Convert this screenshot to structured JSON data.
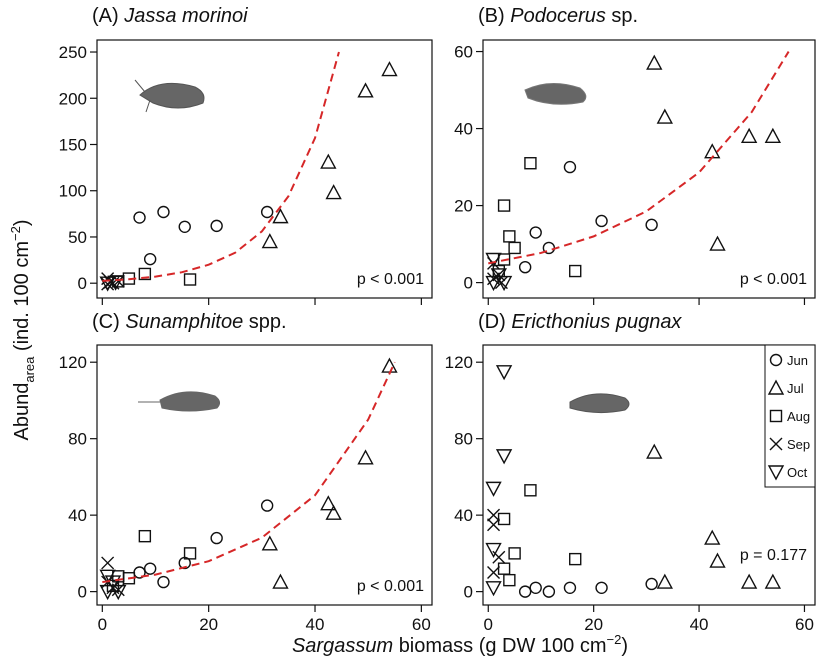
{
  "x_label": {
    "italic": "Sargassum",
    "text": "biomass (g DW 100 cm",
    "sup": "−2",
    "end": ")"
  },
  "y_label": {
    "text": "Abund",
    "sub": "area",
    "rest": "(ind. 100 cm",
    "sup": "−2",
    "end": ")"
  },
  "chart_data": [
    {
      "type": "scatter",
      "panel": "(A)",
      "title": "Jassa morinoi",
      "annotation": "p < 0.001",
      "xlim": [
        -1,
        62
      ],
      "ylim": [
        -16,
        263
      ],
      "xticks": [
        0,
        20,
        40,
        60
      ],
      "yticks": [
        0,
        50,
        100,
        150,
        200,
        250
      ],
      "xtick_labels": false,
      "series": [
        {
          "name": "Jun",
          "marker": "circle",
          "color": "#111111",
          "x": [
            7,
            11.5,
            9,
            15.5,
            21.5,
            31
          ],
          "values": [
            71,
            77,
            26,
            61,
            62,
            77
          ]
        },
        {
          "name": "Jul",
          "marker": "triangle",
          "color": "#111111",
          "x": [
            54,
            49.5,
            42.5,
            43.5,
            31.5,
            33.5
          ],
          "values": [
            231,
            208,
            131,
            98,
            45,
            72
          ]
        },
        {
          "name": "Aug",
          "marker": "square",
          "color": "#111111",
          "x": [
            8,
            16.5,
            3,
            5
          ],
          "values": [
            10,
            4,
            2,
            5
          ]
        },
        {
          "name": "Sep",
          "marker": "x",
          "color": "#111111",
          "x": [
            1,
            1.5,
            2,
            3,
            1
          ],
          "values": [
            5,
            1,
            0,
            2,
            -1
          ]
        },
        {
          "name": "Oct",
          "marker": "triangle-down",
          "color": "#111111",
          "x": [
            1,
            2.5
          ],
          "values": [
            0,
            1
          ]
        },
        {
          "marker": "dashed-line",
          "color": "#d62728",
          "x": [
            0,
            5,
            10,
            15,
            20,
            25,
            30,
            35,
            40,
            44.5
          ],
          "values": [
            2.5,
            4.3,
            7.1,
            11.9,
            20,
            33,
            56,
            94,
            157,
            250
          ]
        }
      ]
    },
    {
      "type": "scatter",
      "panel": "(B)",
      "title": "Podocerus",
      "title_suffix": "sp.",
      "annotation": "p < 0.001",
      "xlim": [
        -1,
        62
      ],
      "ylim": [
        -4,
        63
      ],
      "xticks": [
        0,
        20,
        40,
        60
      ],
      "yticks": [
        0,
        20,
        40,
        60
      ],
      "xtick_labels": false,
      "series": [
        {
          "name": "Jun",
          "marker": "circle",
          "color": "#111111",
          "x": [
            15.5,
            9,
            11.5,
            21.5,
            31,
            7
          ],
          "values": [
            30,
            13,
            9,
            16,
            15,
            4
          ]
        },
        {
          "name": "Jul",
          "marker": "triangle",
          "color": "#111111",
          "x": [
            31.5,
            33.5,
            42.5,
            49.5,
            54,
            43.5
          ],
          "values": [
            57,
            43,
            34,
            38,
            38,
            10
          ]
        },
        {
          "name": "Aug",
          "marker": "square",
          "color": "#111111",
          "x": [
            8,
            3,
            4,
            5,
            16.5,
            3,
            2
          ],
          "values": [
            31,
            20,
            12,
            9,
            3,
            6,
            3
          ]
        },
        {
          "name": "Sep",
          "marker": "x",
          "color": "#111111",
          "x": [
            1,
            1,
            2,
            2.5
          ],
          "values": [
            1,
            5,
            2,
            0
          ]
        },
        {
          "name": "Oct",
          "marker": "triangle-down",
          "color": "#111111",
          "x": [
            1,
            2,
            3,
            1
          ],
          "values": [
            6,
            2,
            0,
            0
          ]
        },
        {
          "marker": "dashed-line",
          "color": "#d62728",
          "x": [
            0,
            10,
            20,
            30,
            40,
            50,
            57
          ],
          "values": [
            5,
            7.7,
            12,
            18.5,
            28.6,
            44.3,
            60
          ]
        }
      ]
    },
    {
      "type": "scatter",
      "panel": "(C)",
      "title": "Sunamphitoe",
      "title_suffix": "spp.",
      "annotation": "p < 0.001",
      "xlim": [
        -1,
        62
      ],
      "ylim": [
        -7,
        129
      ],
      "xticks": [
        0,
        20,
        40,
        60
      ],
      "yticks": [
        0,
        40,
        80,
        120
      ],
      "xtick_labels": true,
      "series": [
        {
          "name": "Jun",
          "marker": "circle",
          "color": "#111111",
          "x": [
            7,
            9,
            11.5,
            15.5,
            21.5,
            31
          ],
          "values": [
            10,
            12,
            5,
            15,
            28,
            45
          ]
        },
        {
          "name": "Jul",
          "marker": "triangle",
          "color": "#111111",
          "x": [
            54,
            49.5,
            42.5,
            43.5,
            31.5,
            33.5
          ],
          "values": [
            118,
            70,
            46,
            41,
            25,
            5
          ]
        },
        {
          "name": "Aug",
          "marker": "square",
          "color": "#111111",
          "x": [
            8,
            16.5,
            3,
            5,
            2
          ],
          "values": [
            29,
            20,
            8,
            7,
            3
          ]
        },
        {
          "name": "Sep",
          "marker": "x",
          "color": "#111111",
          "x": [
            1,
            1,
            2,
            3
          ],
          "values": [
            15,
            5,
            2,
            1
          ]
        },
        {
          "name": "Oct",
          "marker": "triangle-down",
          "color": "#111111",
          "x": [
            1,
            2,
            3,
            1
          ],
          "values": [
            8,
            5,
            0,
            0
          ]
        },
        {
          "marker": "dashed-line",
          "color": "#d62728",
          "x": [
            0,
            10,
            20,
            30,
            40,
            50,
            55
          ],
          "values": [
            5,
            8.9,
            15.9,
            28.2,
            50.4,
            90,
            120
          ]
        }
      ]
    },
    {
      "type": "scatter",
      "panel": "(D)",
      "title": "Ericthonius pugnax",
      "annotation": "p = 0.177",
      "legend": "upper right",
      "xlim": [
        -1,
        62
      ],
      "ylim": [
        -7,
        129
      ],
      "xticks": [
        0,
        20,
        40,
        60
      ],
      "yticks": [
        0,
        40,
        80,
        120
      ],
      "xtick_labels": true,
      "series": [
        {
          "name": "Jun",
          "marker": "circle",
          "color": "#111111",
          "x": [
            7,
            9,
            11.5,
            15.5,
            21.5,
            31
          ],
          "values": [
            0,
            2,
            0,
            2,
            2,
            4
          ]
        },
        {
          "name": "Jul",
          "marker": "triangle",
          "color": "#111111",
          "x": [
            31.5,
            33.5,
            42.5,
            43.5,
            49.5,
            54
          ],
          "values": [
            73,
            5,
            28,
            16,
            5,
            5
          ]
        },
        {
          "name": "Aug",
          "marker": "square",
          "color": "#111111",
          "x": [
            8,
            3,
            3,
            4,
            5,
            16.5
          ],
          "values": [
            53,
            38,
            12,
            6,
            20,
            17
          ]
        },
        {
          "name": "Sep",
          "marker": "x",
          "color": "#111111",
          "x": [
            1,
            1,
            1,
            2
          ],
          "values": [
            40,
            10,
            35,
            18
          ]
        },
        {
          "name": "Oct",
          "marker": "triangle-down",
          "color": "#111111",
          "x": [
            3,
            3,
            1,
            1,
            1
          ],
          "values": [
            115,
            71,
            54,
            22,
            2
          ]
        }
      ]
    }
  ]
}
